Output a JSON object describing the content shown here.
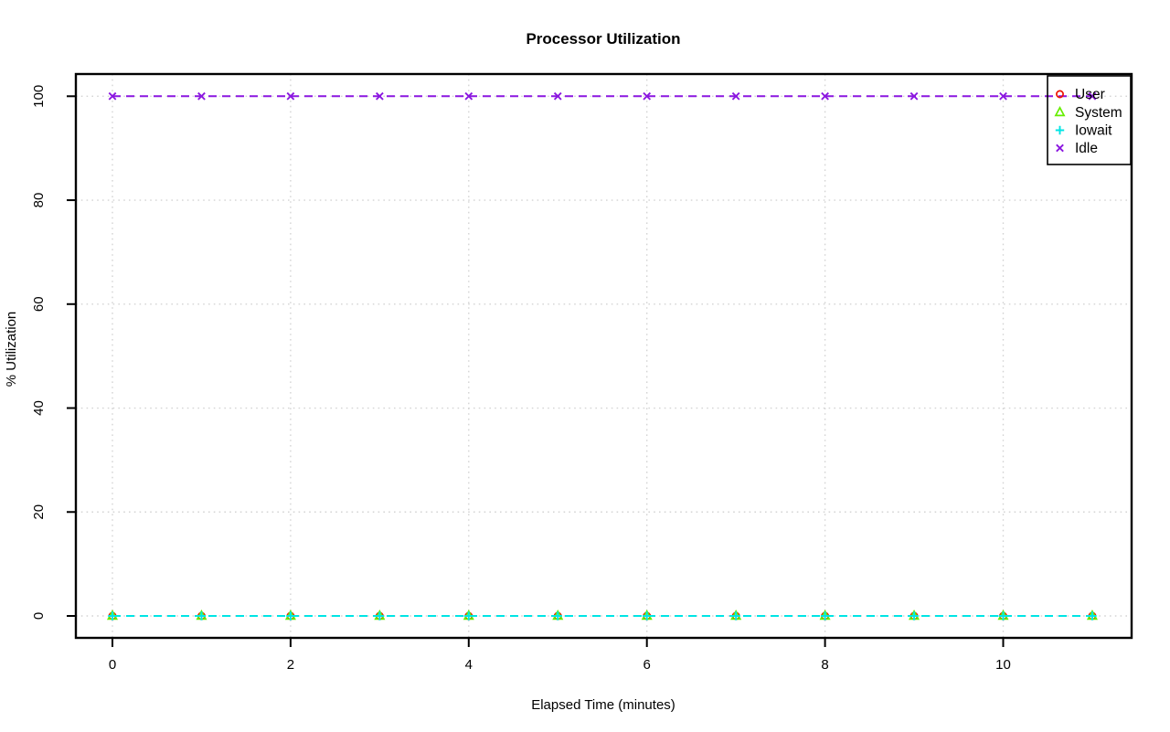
{
  "chart_data": {
    "type": "line",
    "title": "Processor Utilization",
    "xlabel": "Elapsed Time (minutes)",
    "ylabel": "% Utilization",
    "x": [
      0,
      1,
      2,
      3,
      4,
      5,
      6,
      7,
      8,
      9,
      10,
      11
    ],
    "series": [
      {
        "name": "User",
        "color": "#ee1100",
        "marker": "circle",
        "values": [
          0,
          0,
          0,
          0,
          0,
          0,
          0,
          0,
          0,
          0,
          0,
          0
        ]
      },
      {
        "name": "System",
        "color": "#66ee00",
        "marker": "triangle",
        "values": [
          0,
          0,
          0,
          0,
          0,
          0,
          0,
          0,
          0,
          0,
          0,
          0
        ]
      },
      {
        "name": "Iowait",
        "color": "#00e5e5",
        "marker": "plus",
        "values": [
          0,
          0,
          0,
          0,
          0,
          0,
          0,
          0,
          0,
          0,
          0,
          0
        ]
      },
      {
        "name": "Idle",
        "color": "#8b17e0",
        "marker": "x",
        "values": [
          100,
          100,
          100,
          100,
          100,
          100,
          100,
          100,
          100,
          100,
          100,
          100
        ]
      }
    ],
    "x_ticks": [
      0,
      2,
      4,
      6,
      8,
      10
    ],
    "y_ticks": [
      0,
      20,
      40,
      60,
      80,
      100
    ],
    "xlim": [
      0,
      11
    ],
    "ylim": [
      0,
      100
    ],
    "grid": true,
    "grid_style": "dotted",
    "grid_color": "#d4d4d4",
    "line_style": "dashed",
    "legend_position": "topright",
    "background_color": "#ffffff",
    "axis_color": "#000000"
  }
}
